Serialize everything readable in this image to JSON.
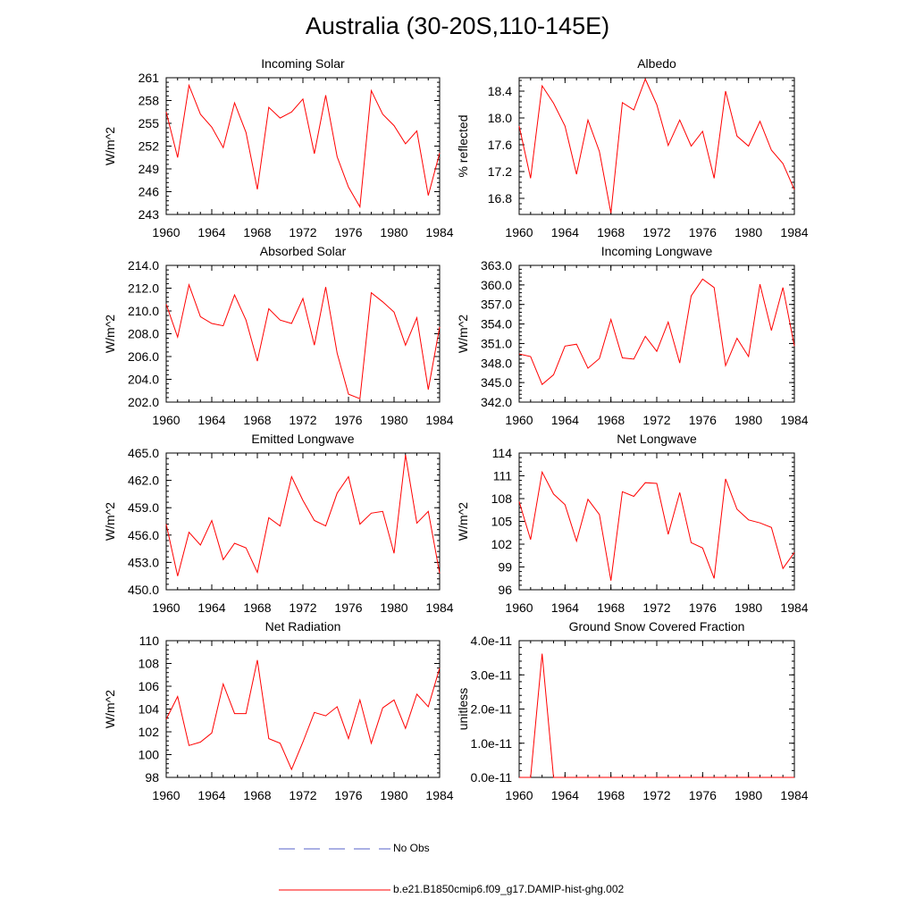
{
  "title": "Australia (30-20S,110-145E)",
  "x_ticks": [
    1960,
    1964,
    1968,
    1972,
    1976,
    1980,
    1984
  ],
  "x_values": [
    1960,
    1961,
    1962,
    1963,
    1964,
    1965,
    1966,
    1967,
    1968,
    1969,
    1970,
    1971,
    1972,
    1973,
    1974,
    1975,
    1976,
    1977,
    1978,
    1979,
    1980,
    1981,
    1982,
    1983,
    1984
  ],
  "legend": {
    "items": [
      {
        "label": "No Obs",
        "color": "#5560c8",
        "dashed": true
      },
      {
        "label": "b.e21.B1850cmip6.f09_g17.DAMIP-hist-ghg.002",
        "color": "#ff0000",
        "dashed": false
      }
    ]
  },
  "chart_data": [
    {
      "type": "line",
      "title": "Incoming Solar",
      "ylabel": "W/m^2",
      "xlim": [
        1960,
        1984
      ],
      "ylim": [
        243,
        261
      ],
      "yticks": [
        243,
        246,
        249,
        252,
        255,
        258,
        261
      ],
      "ytick_labels": [
        "243",
        "246",
        "249",
        "252",
        "255",
        "258",
        "261"
      ],
      "series": [
        {
          "values": [
            256.5,
            250.5,
            260.0,
            256.2,
            254.5,
            251.8,
            257.7,
            253.8,
            246.3,
            257.1,
            255.7,
            256.5,
            258.2,
            251.0,
            258.7,
            250.6,
            246.6,
            244.0,
            259.3,
            256.2,
            254.7,
            252.3,
            254.0,
            245.5,
            251.1
          ]
        }
      ]
    },
    {
      "type": "line",
      "title": "Albedo",
      "ylabel": "% reflected",
      "xlim": [
        1960,
        1984
      ],
      "ylim": [
        16.56,
        18.6
      ],
      "yticks": [
        16.8,
        17.2,
        17.6,
        18.0,
        18.4
      ],
      "ytick_labels": [
        "16.8",
        "17.2",
        "17.6",
        "18.0",
        "18.4"
      ],
      "series": [
        {
          "values": [
            17.88,
            17.1,
            18.48,
            18.22,
            17.88,
            17.16,
            17.97,
            17.5,
            16.58,
            18.23,
            18.12,
            18.58,
            18.2,
            17.59,
            17.97,
            17.58,
            17.8,
            17.1,
            18.4,
            17.73,
            17.58,
            17.95,
            17.52,
            17.32,
            16.93
          ]
        }
      ]
    },
    {
      "type": "line",
      "title": "Absorbed Solar",
      "ylabel": "W/m^2",
      "xlim": [
        1960,
        1984
      ],
      "ylim": [
        202,
        214
      ],
      "yticks": [
        202,
        204,
        206,
        208,
        210,
        212,
        214
      ],
      "ytick_labels": [
        "202.0",
        "204.0",
        "206.0",
        "208.0",
        "210.0",
        "212.0",
        "214.0"
      ],
      "series": [
        {
          "values": [
            210.6,
            207.7,
            212.3,
            209.5,
            208.9,
            208.7,
            211.4,
            209.2,
            205.6,
            210.2,
            209.2,
            208.9,
            211.1,
            207.0,
            212.1,
            206.3,
            202.7,
            202.3,
            211.6,
            210.8,
            209.9,
            207.0,
            209.4,
            203.1,
            208.6
          ]
        }
      ]
    },
    {
      "type": "line",
      "title": "Incoming Longwave",
      "ylabel": "W/m^2",
      "xlim": [
        1960,
        1984
      ],
      "ylim": [
        342,
        363
      ],
      "yticks": [
        342,
        345,
        348,
        351,
        354,
        357,
        360,
        363
      ],
      "ytick_labels": [
        "342.0",
        "345.0",
        "348.0",
        "351.0",
        "354.0",
        "357.0",
        "360.0",
        "363.0"
      ],
      "series": [
        {
          "values": [
            349.4,
            349.0,
            344.7,
            346.2,
            350.6,
            350.9,
            347.2,
            348.7,
            354.7,
            348.8,
            348.6,
            352.1,
            349.8,
            354.3,
            348.0,
            358.3,
            360.9,
            359.6,
            347.6,
            351.8,
            349.0,
            360.1,
            353.0,
            359.6,
            350.6
          ]
        }
      ]
    },
    {
      "type": "line",
      "title": "Emitted Longwave",
      "ylabel": "W/m^2",
      "xlim": [
        1960,
        1984
      ],
      "ylim": [
        450,
        465
      ],
      "yticks": [
        450,
        453,
        456,
        459,
        462,
        465
      ],
      "ytick_labels": [
        "450.0",
        "453.0",
        "456.0",
        "459.0",
        "462.0",
        "465.0"
      ],
      "series": [
        {
          "values": [
            457.2,
            451.5,
            456.3,
            454.9,
            457.6,
            453.3,
            455.1,
            454.6,
            451.9,
            457.9,
            457.0,
            462.4,
            459.8,
            457.6,
            457.0,
            460.6,
            462.4,
            457.2,
            458.4,
            458.6,
            454.0,
            464.8,
            457.3,
            458.6,
            451.8
          ]
        }
      ]
    },
    {
      "type": "line",
      "title": "Net Longwave",
      "ylabel": "W/m^2",
      "xlim": [
        1960,
        1984
      ],
      "ylim": [
        96,
        114
      ],
      "yticks": [
        96,
        99,
        102,
        105,
        108,
        111,
        114
      ],
      "ytick_labels": [
        "96",
        "99",
        "102",
        "105",
        "108",
        "111",
        "114"
      ],
      "series": [
        {
          "values": [
            107.6,
            102.6,
            111.5,
            108.6,
            107.2,
            102.4,
            107.9,
            105.9,
            97.2,
            108.9,
            108.3,
            110.1,
            110.0,
            103.3,
            108.8,
            102.2,
            101.5,
            97.5,
            110.6,
            106.6,
            105.2,
            104.8,
            104.2,
            98.8,
            100.9
          ]
        }
      ]
    },
    {
      "type": "line",
      "title": "Net Radiation",
      "ylabel": "W/m^2",
      "xlim": [
        1960,
        1984
      ],
      "ylim": [
        98,
        110
      ],
      "yticks": [
        98,
        100,
        102,
        104,
        106,
        108,
        110
      ],
      "ytick_labels": [
        "98",
        "100",
        "102",
        "104",
        "106",
        "108",
        "110"
      ],
      "series": [
        {
          "values": [
            103.1,
            105.1,
            100.8,
            101.1,
            101.9,
            106.2,
            103.6,
            103.6,
            108.3,
            101.4,
            101.0,
            98.7,
            101.1,
            103.7,
            103.4,
            104.2,
            101.4,
            104.8,
            101.0,
            104.1,
            104.8,
            102.3,
            105.3,
            104.2,
            107.6
          ]
        }
      ]
    },
    {
      "type": "line",
      "title": "Ground Snow Covered Fraction",
      "ylabel": "unitless",
      "xlim": [
        1960,
        1984
      ],
      "ylim": [
        0,
        4e-11
      ],
      "yticks": [
        0,
        1e-11,
        2e-11,
        3e-11,
        4e-11
      ],
      "ytick_labels": [
        "0.0e-11",
        "1.0e-11",
        "2.0e-11",
        "3.0e-11",
        "4.0e-11"
      ],
      "series": [
        {
          "values": [
            0,
            0,
            3.62e-11,
            0,
            0,
            0,
            0,
            0,
            0,
            0,
            0,
            0,
            0,
            0,
            0,
            0,
            0,
            0,
            0,
            0,
            0,
            0,
            0,
            0,
            0
          ]
        }
      ]
    }
  ]
}
